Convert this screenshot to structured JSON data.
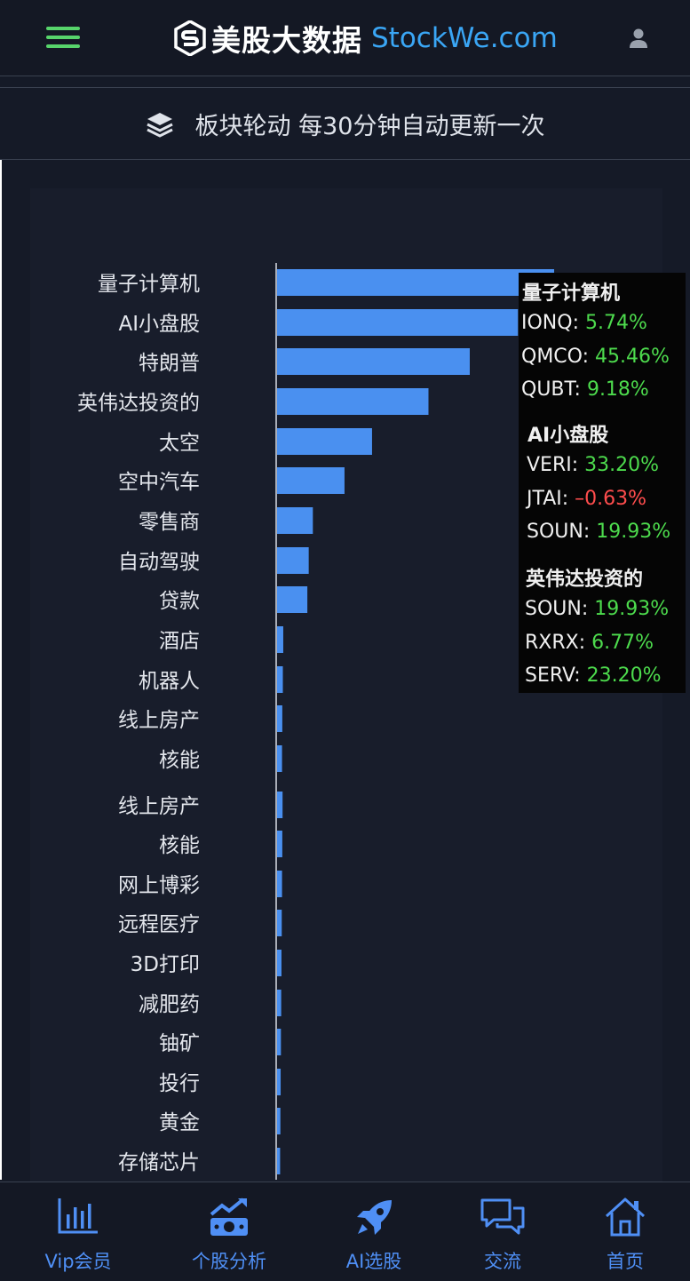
{
  "header": {
    "brand_cn": "美股大数据",
    "brand_en": "StockWe.com"
  },
  "section": {
    "title": "板块轮动 每30分钟自动更新一次"
  },
  "chart_data": {
    "type": "bar",
    "orientation": "horizontal",
    "categories": [
      "量子计算机",
      "AI小盘股",
      "特朗普",
      "英伟达投资的",
      "太空",
      "空中汽车",
      "零售商",
      "自动驾驶",
      "贷款",
      "酒店",
      "机器人",
      "线上房产",
      "核能",
      "线上房产",
      "核能",
      "网上博彩",
      "远程医疗",
      "3D打印",
      "减肥药",
      "铀矿",
      "投行",
      "黄金",
      "存储芯片"
    ],
    "values": [
      20.13,
      17.5,
      14.0,
      11.0,
      6.9,
      4.9,
      2.6,
      2.3,
      2.2,
      0.45,
      0.42,
      0.38,
      0.36,
      0.4,
      0.38,
      0.36,
      0.34,
      0.32,
      0.3,
      0.28,
      0.26,
      0.24,
      0.22
    ],
    "bar_color": "#4a90f0",
    "xlim": [
      0,
      28
    ],
    "grid": false,
    "legend": "none"
  },
  "tooltip": {
    "groups": [
      {
        "title": "量子计算机",
        "rows": [
          {
            "ticker": "IONQ:",
            "change": "5.74%",
            "neg": false
          },
          {
            "ticker": "QMCO:",
            "change": "45.46%",
            "neg": false
          },
          {
            "ticker": "QUBT:",
            "change": "9.18%",
            "neg": false
          }
        ]
      },
      {
        "title": "AI小盘股",
        "rows": [
          {
            "ticker": "VERI:",
            "change": "33.20%",
            "neg": false
          },
          {
            "ticker": "JTAI:",
            "change": "–0.63%",
            "neg": true
          },
          {
            "ticker": "SOUN:",
            "change": "19.93%",
            "neg": false
          }
        ]
      },
      {
        "title": "英伟达投资的",
        "rows": [
          {
            "ticker": "SOUN:",
            "change": "19.93%",
            "neg": false
          },
          {
            "ticker": "RXRX:",
            "change": "6.77%",
            "neg": false
          },
          {
            "ticker": "SERV:",
            "change": "23.20%",
            "neg": false
          }
        ]
      }
    ]
  },
  "nav": {
    "items": [
      {
        "label": "Vip会员",
        "icon": "bar-chart-icon"
      },
      {
        "label": "个股分析",
        "icon": "money-trend-icon"
      },
      {
        "label": "AI选股",
        "icon": "rocket-icon"
      },
      {
        "label": "交流",
        "icon": "chat-icon"
      },
      {
        "label": "首页",
        "icon": "home-icon"
      }
    ],
    "color": "#4f8ff5"
  }
}
